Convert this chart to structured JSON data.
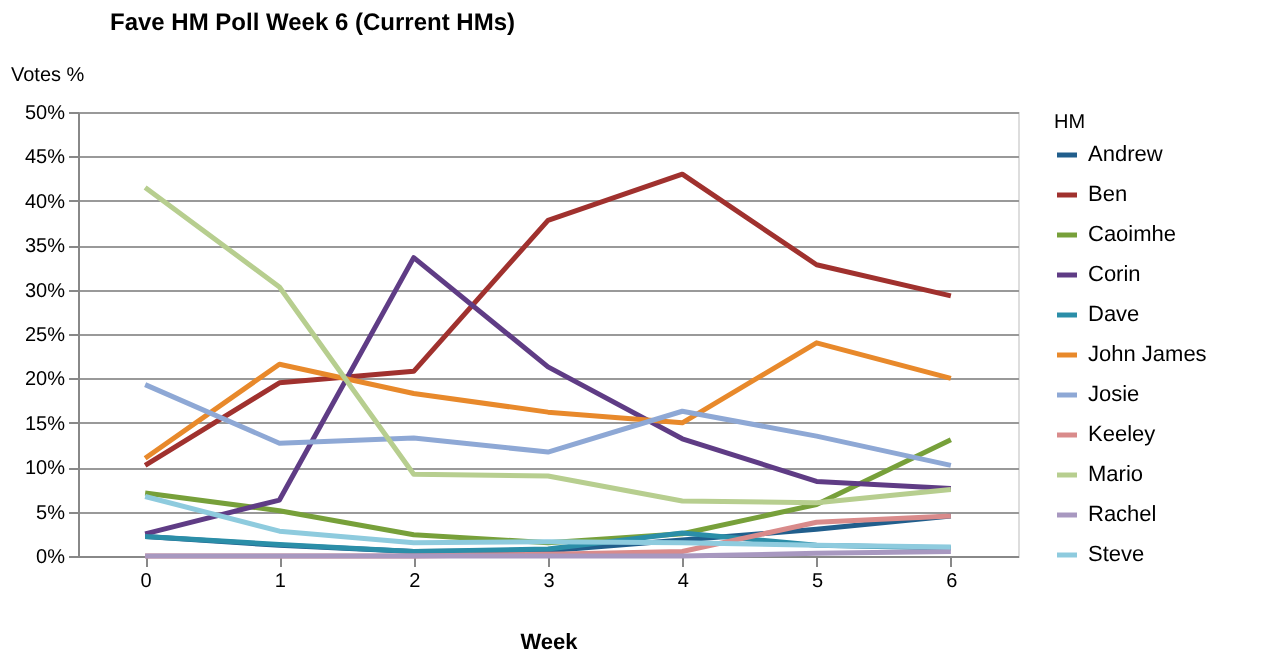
{
  "chart_data": {
    "type": "line",
    "title": "Fave HM Poll Week 6 (Current HMs)",
    "xlabel": "Week",
    "ylabel": "Votes %",
    "legend_title": "HM",
    "categories": [
      "0",
      "1",
      "2",
      "3",
      "4",
      "5",
      "6"
    ],
    "series": [
      {
        "name": "Andrew",
        "color": "#215e8c",
        "values": [
          2.2,
          1.2,
          0.5,
          0.6,
          1.8,
          3.0,
          4.5
        ]
      },
      {
        "name": "Ben",
        "color": "#a0312e",
        "values": [
          10.2,
          19.5,
          20.8,
          37.8,
          43.0,
          32.8,
          29.3
        ]
      },
      {
        "name": "Caoimhe",
        "color": "#77a03a",
        "values": [
          7.1,
          5.1,
          2.4,
          1.5,
          2.5,
          5.8,
          13.1
        ]
      },
      {
        "name": "Corin",
        "color": "#5f3c85",
        "values": [
          2.5,
          6.3,
          33.6,
          21.3,
          13.2,
          8.4,
          7.6
        ]
      },
      {
        "name": "Dave",
        "color": "#2b8ea8",
        "values": [
          2.2,
          1.3,
          0.5,
          0.8,
          2.6,
          1.2,
          0.9
        ]
      },
      {
        "name": "John James",
        "color": "#e8892b",
        "values": [
          11.0,
          21.6,
          18.3,
          16.2,
          15.0,
          24.0,
          20.0
        ]
      },
      {
        "name": "Josie",
        "color": "#8ea8d5",
        "values": [
          19.3,
          12.7,
          13.3,
          11.7,
          16.3,
          13.5,
          10.2
        ]
      },
      {
        "name": "Keeley",
        "color": "#d98b8b",
        "values": [
          0,
          0,
          0,
          0.2,
          0.5,
          3.8,
          4.5
        ]
      },
      {
        "name": "Mario",
        "color": "#b7ce8f",
        "values": [
          41.5,
          30.3,
          9.2,
          9.0,
          6.2,
          6.0,
          7.5
        ]
      },
      {
        "name": "Rachel",
        "color": "#a898c0",
        "values": [
          0,
          0,
          0,
          0,
          0,
          0.3,
          0.5
        ]
      },
      {
        "name": "Steve",
        "color": "#8ecbde",
        "values": [
          6.7,
          2.8,
          1.5,
          1.6,
          1.5,
          1.2,
          1.0
        ]
      }
    ],
    "ylim": [
      0,
      50
    ],
    "yticks": [
      {
        "value": 0,
        "label": "0%"
      },
      {
        "value": 5,
        "label": "5%"
      },
      {
        "value": 10,
        "label": "10%"
      },
      {
        "value": 15,
        "label": "15%"
      },
      {
        "value": 20,
        "label": "20%"
      },
      {
        "value": 25,
        "label": "25%"
      },
      {
        "value": 30,
        "label": "30%"
      },
      {
        "value": 35,
        "label": "35%"
      },
      {
        "value": 40,
        "label": "40%"
      },
      {
        "value": 45,
        "label": "45%"
      },
      {
        "value": 50,
        "label": "50%"
      }
    ],
    "grid": "y",
    "legend": "right",
    "marker": "none",
    "line_style": "solid"
  }
}
